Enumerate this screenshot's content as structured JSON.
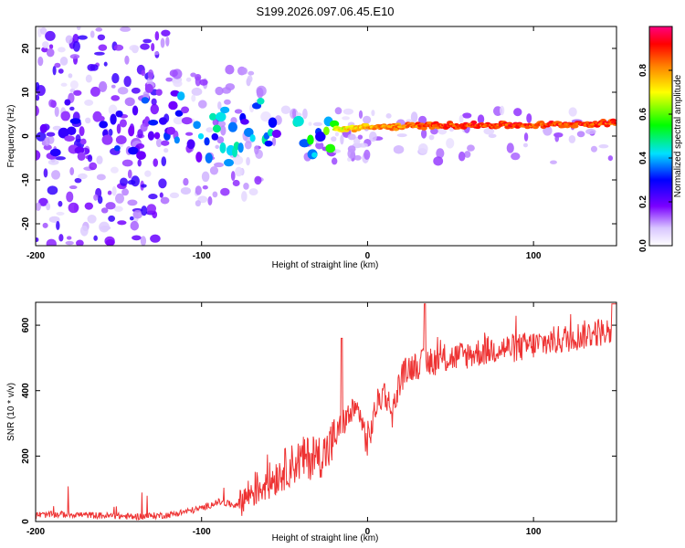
{
  "title": "S199.2026.097.06.45.E10",
  "chart_data": [
    {
      "type": "heatmap",
      "name": "spectrogram",
      "xlabel": "Height of straight line (km)",
      "ylabel": "Frequency (Hz)",
      "xlim": [
        -200,
        150
      ],
      "ylim": [
        -25,
        25
      ],
      "xticks": [
        -200,
        -100,
        0,
        100
      ],
      "yticks": [
        -20,
        -10,
        0,
        10,
        20
      ],
      "colorbar": {
        "label": "Normalized spectral amplitude",
        "range": [
          0,
          1
        ],
        "ticks": [
          0.0,
          0.2,
          0.4,
          0.6,
          0.8
        ],
        "colors": [
          "#ffffff",
          "#d9c6ff",
          "#7a00ff",
          "#0000ff",
          "#00e0ff",
          "#00ff00",
          "#ffff00",
          "#ff8000",
          "#ff0000",
          "#ff0080"
        ]
      },
      "ridge": [
        {
          "x": -200,
          "freq": 2.0,
          "amp": 0.3
        },
        {
          "x": -150,
          "freq": 2.5,
          "amp": 0.35
        },
        {
          "x": -110,
          "freq": 3.5,
          "amp": 0.45
        },
        {
          "x": -90,
          "freq": -1.5,
          "amp": 0.5
        },
        {
          "x": -70,
          "freq": 1.0,
          "amp": 0.5
        },
        {
          "x": -50,
          "freq": 0.5,
          "amp": 0.5
        },
        {
          "x": -30,
          "freq": -0.5,
          "amp": 0.6
        },
        {
          "x": -20,
          "freq": 1.5,
          "amp": 0.75
        },
        {
          "x": 0,
          "freq": 2.0,
          "amp": 0.85
        },
        {
          "x": 50,
          "freq": 2.5,
          "amp": 0.95
        },
        {
          "x": 100,
          "freq": 2.5,
          "amp": 0.95
        },
        {
          "x": 150,
          "freq": 3.0,
          "amp": 0.95
        }
      ]
    },
    {
      "type": "line",
      "name": "snr",
      "xlabel": "Height of straight line (km)",
      "ylabel": "SNR (10 * v/v)",
      "xlim": [
        -200,
        150
      ],
      "ylim": [
        0,
        670
      ],
      "xticks": [
        -200,
        -100,
        0,
        100
      ],
      "yticks": [
        0,
        200,
        400,
        600
      ],
      "color": "#ee3333",
      "series": [
        {
          "name": "SNR",
          "x": [
            -200,
            -180,
            -160,
            -140,
            -120,
            -100,
            -90,
            -80,
            -70,
            -60,
            -50,
            -40,
            -30,
            -25,
            -20,
            -15,
            -10,
            -5,
            0,
            5,
            10,
            15,
            20,
            25,
            30,
            40,
            50,
            60,
            70,
            80,
            90,
            100,
            110,
            120,
            130,
            140,
            150
          ],
          "values": [
            20,
            22,
            18,
            15,
            20,
            40,
            60,
            50,
            90,
            120,
            160,
            190,
            200,
            210,
            250,
            300,
            330,
            340,
            230,
            350,
            400,
            330,
            440,
            470,
            480,
            490,
            500,
            510,
            520,
            530,
            530,
            540,
            550,
            560,
            570,
            580,
            580
          ]
        }
      ]
    }
  ]
}
